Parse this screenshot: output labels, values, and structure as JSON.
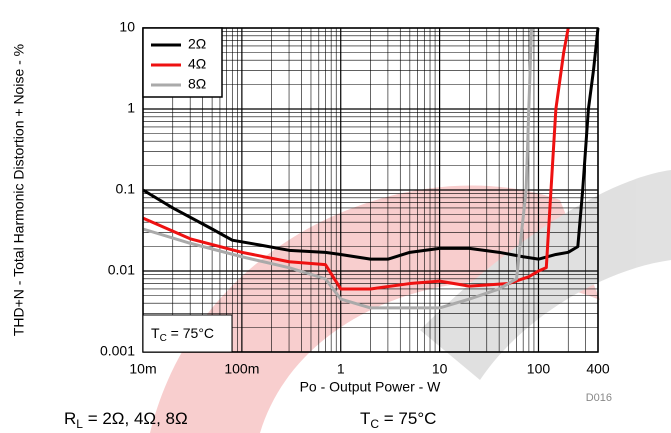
{
  "chart_data": {
    "type": "line",
    "x_label": "Po - Output Power - W",
    "y_label": "THD+N - Total Harmonic Distortion + Noise - %",
    "xlog": true,
    "ylog": true,
    "grid": true,
    "minor_grid": true,
    "xlim": [
      0.01,
      400
    ],
    "ylim": [
      0.001,
      10
    ],
    "xticks": [
      {
        "value": 0.01,
        "label": "10m"
      },
      {
        "value": 0.1,
        "label": "100m"
      },
      1,
      10,
      100,
      400
    ],
    "yticks": [
      0.001,
      0.01,
      0.1,
      1,
      10
    ],
    "legend_position": "upper left",
    "series": [
      {
        "name": "2Ω",
        "color": "#000000",
        "x": [
          0.01,
          0.02,
          0.05,
          0.08,
          0.15,
          0.3,
          0.7,
          1,
          2,
          3,
          5,
          10,
          20,
          40,
          70,
          100,
          150,
          200,
          250,
          280,
          320,
          360,
          400
        ],
        "values": [
          0.1,
          0.06,
          0.033,
          0.024,
          0.021,
          0.018,
          0.017,
          0.016,
          0.014,
          0.014,
          0.017,
          0.019,
          0.019,
          0.017,
          0.015,
          0.014,
          0.016,
          0.017,
          0.02,
          0.1,
          1,
          3,
          10
        ]
      },
      {
        "name": "4Ω",
        "color": "#ee1111",
        "x": [
          0.01,
          0.03,
          0.1,
          0.3,
          0.7,
          1,
          2,
          5,
          10,
          20,
          50,
          80,
          100,
          120,
          150,
          180,
          200
        ],
        "values": [
          0.045,
          0.025,
          0.017,
          0.013,
          0.012,
          0.006,
          0.006,
          0.007,
          0.0075,
          0.0065,
          0.007,
          0.0085,
          0.01,
          0.011,
          1,
          5,
          10
        ]
      },
      {
        "name": "8Ω",
        "color": "#aaaaaa",
        "x": [
          0.01,
          0.03,
          0.1,
          0.3,
          0.7,
          1,
          2,
          5,
          10,
          20,
          40,
          60,
          75,
          85
        ],
        "values": [
          0.033,
          0.022,
          0.015,
          0.011,
          0.008,
          0.0045,
          0.0035,
          0.0035,
          0.0035,
          0.0045,
          0.006,
          0.008,
          0.1,
          10
        ]
      }
    ],
    "annotation": {
      "main": "T",
      "sub": "C",
      "rest": " = 75°C"
    },
    "footer_left": {
      "main": "R",
      "sub": "L",
      "rest": " = 2Ω, 4Ω, 8Ω"
    },
    "footer_right": {
      "main": "T",
      "sub": "C",
      "rest": " = 75°C"
    },
    "figure_id": "D016"
  }
}
